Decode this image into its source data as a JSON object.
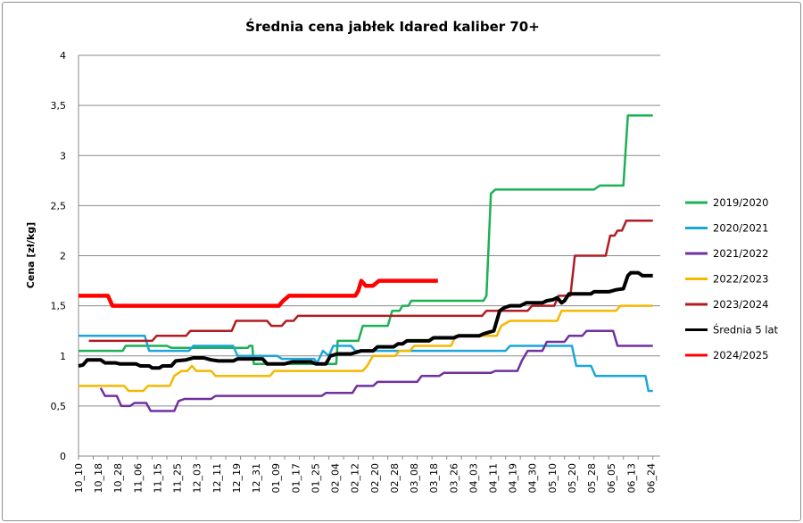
{
  "chart_data": {
    "type": "line",
    "title": "Średnia cena jabłek Idared kaliber 70+",
    "ylabel": "Cena [zł/kg]",
    "xlabel": "",
    "ylim": [
      0,
      4
    ],
    "yticks": [
      "0",
      "0,5",
      "1",
      "1,5",
      "2",
      "2,5",
      "3",
      "3,5",
      "4"
    ],
    "grid": "horizontal",
    "legend_position": "right",
    "categories": [
      "10_10",
      "10_18",
      "10_28",
      "11_06",
      "11_15",
      "11_25",
      "12_03",
      "12_11",
      "12_19",
      "12_31",
      "01_09",
      "01_17",
      "01_25",
      "02_04",
      "02_12",
      "02_20",
      "02_28",
      "03_08",
      "03_18",
      "03_26",
      "04_03",
      "04_11",
      "04_19",
      "04_30",
      "05_10",
      "05_20",
      "05_28",
      "06_05",
      "06_13",
      "06_24"
    ],
    "series": [
      {
        "name": "2019/2020",
        "color": "#1db054",
        "width": 2.5,
        "points": [
          [
            0,
            1.05
          ],
          [
            3,
            1.05
          ],
          [
            3.2,
            1.1
          ],
          [
            6,
            1.1
          ],
          [
            6.3,
            1.08
          ],
          [
            11.5,
            1.08
          ],
          [
            11.6,
            1.1
          ],
          [
            11.8,
            1.1
          ],
          [
            11.9,
            0.92
          ],
          [
            17.5,
            0.92
          ],
          [
            17.6,
            1.15
          ],
          [
            19,
            1.15
          ],
          [
            19.3,
            1.3
          ],
          [
            21,
            1.3
          ],
          [
            21.3,
            1.45
          ],
          [
            21.8,
            1.45
          ],
          [
            22,
            1.5
          ],
          [
            22.4,
            1.5
          ],
          [
            22.6,
            1.55
          ],
          [
            27.5,
            1.55
          ],
          [
            27.7,
            1.6
          ],
          [
            28,
            2.62
          ],
          [
            28.3,
            2.66
          ],
          [
            35,
            2.66
          ],
          [
            35.4,
            2.7
          ],
          [
            37,
            2.7
          ],
          [
            37.3,
            3.4
          ],
          [
            39,
            3.4
          ]
        ]
      },
      {
        "name": "2020/2021",
        "color": "#1ba6d9",
        "width": 2.5,
        "points": [
          [
            0,
            1.2
          ],
          [
            4.5,
            1.2
          ],
          [
            4.8,
            1.05
          ],
          [
            7.5,
            1.05
          ],
          [
            7.8,
            1.1
          ],
          [
            10.5,
            1.1
          ],
          [
            10.8,
            1.0
          ],
          [
            13.5,
            1.0
          ],
          [
            13.8,
            0.97
          ],
          [
            16,
            0.97
          ],
          [
            16.2,
            0.93
          ],
          [
            16.6,
            1.05
          ],
          [
            17,
            1.0
          ],
          [
            17.3,
            1.1
          ],
          [
            18.5,
            1.1
          ],
          [
            18.8,
            1.05
          ],
          [
            29,
            1.05
          ],
          [
            29.3,
            1.1
          ],
          [
            33.5,
            1.1
          ],
          [
            33.8,
            0.9
          ],
          [
            34.8,
            0.9
          ],
          [
            35.1,
            0.8
          ],
          [
            38.5,
            0.8
          ],
          [
            38.7,
            0.65
          ],
          [
            39,
            0.65
          ]
        ]
      },
      {
        "name": "2021/2022",
        "color": "#7030a0",
        "width": 2.5,
        "points": [
          [
            1.5,
            0.68
          ],
          [
            1.8,
            0.6
          ],
          [
            2.6,
            0.6
          ],
          [
            2.9,
            0.5
          ],
          [
            3.5,
            0.5
          ],
          [
            3.8,
            0.53
          ],
          [
            4.6,
            0.53
          ],
          [
            4.9,
            0.45
          ],
          [
            6.5,
            0.45
          ],
          [
            6.8,
            0.55
          ],
          [
            7.2,
            0.57
          ],
          [
            9,
            0.57
          ],
          [
            9.3,
            0.6
          ],
          [
            16.5,
            0.6
          ],
          [
            16.8,
            0.63
          ],
          [
            18.6,
            0.63
          ],
          [
            18.9,
            0.7
          ],
          [
            20,
            0.7
          ],
          [
            20.3,
            0.74
          ],
          [
            23,
            0.74
          ],
          [
            23.3,
            0.8
          ],
          [
            24.5,
            0.8
          ],
          [
            24.8,
            0.83
          ],
          [
            28,
            0.83
          ],
          [
            28.3,
            0.85
          ],
          [
            29.8,
            0.85
          ],
          [
            30.1,
            0.95
          ],
          [
            30.5,
            1.05
          ],
          [
            31.5,
            1.05
          ],
          [
            31.8,
            1.14
          ],
          [
            33,
            1.14
          ],
          [
            33.3,
            1.2
          ],
          [
            34.2,
            1.2
          ],
          [
            34.5,
            1.25
          ],
          [
            36.3,
            1.25
          ],
          [
            36.6,
            1.1
          ],
          [
            39,
            1.1
          ]
        ]
      },
      {
        "name": "2022/2023",
        "color": "#f5b800",
        "width": 2.5,
        "points": [
          [
            0,
            0.7
          ],
          [
            3.1,
            0.7
          ],
          [
            3.4,
            0.65
          ],
          [
            4.4,
            0.65
          ],
          [
            4.7,
            0.7
          ],
          [
            6.2,
            0.7
          ],
          [
            6.5,
            0.8
          ],
          [
            7,
            0.85
          ],
          [
            7.4,
            0.85
          ],
          [
            7.7,
            0.9
          ],
          [
            8,
            0.85
          ],
          [
            9,
            0.85
          ],
          [
            9.3,
            0.8
          ],
          [
            13,
            0.8
          ],
          [
            13.3,
            0.85
          ],
          [
            19.3,
            0.85
          ],
          [
            19.6,
            0.9
          ],
          [
            20,
            1.0
          ],
          [
            21.5,
            1.0
          ],
          [
            21.8,
            1.05
          ],
          [
            22.5,
            1.05
          ],
          [
            22.8,
            1.1
          ],
          [
            25.3,
            1.1
          ],
          [
            25.6,
            1.2
          ],
          [
            28.4,
            1.2
          ],
          [
            28.7,
            1.3
          ],
          [
            29.3,
            1.35
          ],
          [
            32.5,
            1.35
          ],
          [
            32.8,
            1.45
          ],
          [
            36.5,
            1.45
          ],
          [
            36.8,
            1.5
          ],
          [
            39,
            1.5
          ]
        ]
      },
      {
        "name": "2023/2024",
        "color": "#b01c22",
        "width": 2.5,
        "points": [
          [
            0.7,
            1.15
          ],
          [
            5,
            1.15
          ],
          [
            5.3,
            1.2
          ],
          [
            7.3,
            1.2
          ],
          [
            7.6,
            1.25
          ],
          [
            10.4,
            1.25
          ],
          [
            10.7,
            1.35
          ],
          [
            12.8,
            1.35
          ],
          [
            13.1,
            1.3
          ],
          [
            13.8,
            1.3
          ],
          [
            14.1,
            1.35
          ],
          [
            14.6,
            1.35
          ],
          [
            14.9,
            1.4
          ],
          [
            27.4,
            1.4
          ],
          [
            27.7,
            1.45
          ],
          [
            30.5,
            1.45
          ],
          [
            30.8,
            1.5
          ],
          [
            32.3,
            1.5
          ],
          [
            32.6,
            1.6
          ],
          [
            33.4,
            1.6
          ],
          [
            33.7,
            2.0
          ],
          [
            35.8,
            2.0
          ],
          [
            36.1,
            2.2
          ],
          [
            36.4,
            2.2
          ],
          [
            36.6,
            2.25
          ],
          [
            36.9,
            2.25
          ],
          [
            37.2,
            2.35
          ],
          [
            39,
            2.35
          ]
        ]
      },
      {
        "name": "Średnia 5 lat",
        "color": "#000000",
        "width": 4,
        "points": [
          [
            0,
            0.9
          ],
          [
            0.3,
            0.91
          ],
          [
            0.6,
            0.96
          ],
          [
            1.5,
            0.96
          ],
          [
            1.8,
            0.93
          ],
          [
            2.5,
            0.93
          ],
          [
            2.8,
            0.92
          ],
          [
            3.9,
            0.92
          ],
          [
            4.2,
            0.9
          ],
          [
            4.8,
            0.9
          ],
          [
            5,
            0.88
          ],
          [
            5.5,
            0.88
          ],
          [
            5.7,
            0.9
          ],
          [
            6.3,
            0.9
          ],
          [
            6.6,
            0.95
          ],
          [
            7.3,
            0.96
          ],
          [
            7.8,
            0.98
          ],
          [
            8.5,
            0.98
          ],
          [
            9,
            0.96
          ],
          [
            9.5,
            0.95
          ],
          [
            10.5,
            0.95
          ],
          [
            10.8,
            0.97
          ],
          [
            12.5,
            0.97
          ],
          [
            12.8,
            0.92
          ],
          [
            14,
            0.92
          ],
          [
            14.5,
            0.94
          ],
          [
            15.8,
            0.94
          ],
          [
            16.1,
            0.92
          ],
          [
            16.8,
            0.92
          ],
          [
            17.1,
            1.0
          ],
          [
            17.6,
            1.02
          ],
          [
            18.5,
            1.02
          ],
          [
            19.2,
            1.05
          ],
          [
            20,
            1.05
          ],
          [
            20.3,
            1.09
          ],
          [
            21.4,
            1.09
          ],
          [
            21.7,
            1.12
          ],
          [
            22,
            1.12
          ],
          [
            22.3,
            1.15
          ],
          [
            23.8,
            1.15
          ],
          [
            24.1,
            1.18
          ],
          [
            25.5,
            1.18
          ],
          [
            25.8,
            1.2
          ],
          [
            27.2,
            1.2
          ],
          [
            27.5,
            1.22
          ],
          [
            28.2,
            1.25
          ],
          [
            28.6,
            1.45
          ],
          [
            28.9,
            1.48
          ],
          [
            29.3,
            1.5
          ],
          [
            30,
            1.5
          ],
          [
            30.4,
            1.53
          ],
          [
            31.5,
            1.53
          ],
          [
            31.8,
            1.55
          ],
          [
            32.2,
            1.56
          ],
          [
            32.5,
            1.58
          ],
          [
            32.8,
            1.53
          ],
          [
            33,
            1.55
          ],
          [
            33.3,
            1.62
          ],
          [
            34.8,
            1.62
          ],
          [
            35,
            1.64
          ],
          [
            36,
            1.64
          ],
          [
            36.5,
            1.66
          ],
          [
            37,
            1.67
          ],
          [
            37.3,
            1.8
          ],
          [
            37.5,
            1.83
          ],
          [
            38,
            1.83
          ],
          [
            38.3,
            1.8
          ],
          [
            39,
            1.8
          ]
        ]
      },
      {
        "name": "2024/2025",
        "color": "#ff0000",
        "width": 4.5,
        "points": [
          [
            0,
            1.6
          ],
          [
            2,
            1.6
          ],
          [
            2.3,
            1.5
          ],
          [
            13.6,
            1.5
          ],
          [
            13.9,
            1.55
          ],
          [
            14.3,
            1.6
          ],
          [
            18.8,
            1.6
          ],
          [
            19,
            1.65
          ],
          [
            19.2,
            1.75
          ],
          [
            19.5,
            1.7
          ],
          [
            20,
            1.7
          ],
          [
            20.4,
            1.75
          ],
          [
            24.4,
            1.75
          ]
        ]
      }
    ]
  }
}
